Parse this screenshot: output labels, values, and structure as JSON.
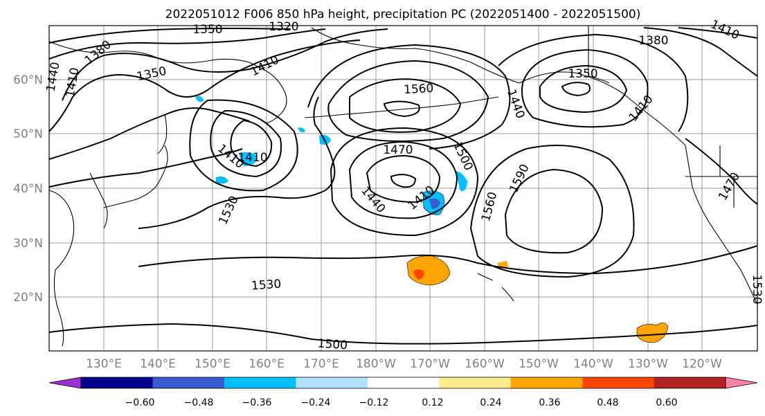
{
  "title": "2022051012 F006 850 hPa height, precipitation PC (2022051400 - 2022051500)",
  "map": {
    "lat_labels": [
      "60°N",
      "50°N",
      "40°N",
      "30°N",
      "20°N"
    ],
    "lon_labels": [
      "130°E",
      "140°E",
      "150°E",
      "160°E",
      "170°E",
      "180°W",
      "170°W",
      "160°W",
      "150°W",
      "140°W",
      "130°W",
      "120°W"
    ],
    "contour_labels": [
      "1350",
      "1320",
      "1380",
      "1410",
      "1440",
      "1410",
      "1350",
      "1410",
      "1560",
      "1380",
      "1410",
      "1350",
      "1410",
      "1440",
      "1410",
      "1470",
      "1500",
      "1590",
      "1530",
      "1440",
      "1410",
      "1560",
      "1470",
      "1530",
      "1500",
      "1530"
    ]
  },
  "colorbar": {
    "tick_labels": [
      "−0.60",
      "−0.48",
      "−0.36",
      "−0.24",
      "−0.12",
      "0.12",
      "0.24",
      "0.36",
      "0.48",
      "0.60"
    ],
    "colors": [
      "#9b30d0",
      "#00008b",
      "#3a5bcd",
      "#00bfff",
      "#b0e2ff",
      "#ffffff",
      "#ffec8b",
      "#ffa500",
      "#ff4500",
      "#b22222",
      "#ff82ab"
    ]
  },
  "colors": {
    "contour": "#000000",
    "grid": "#9a9a9a"
  }
}
